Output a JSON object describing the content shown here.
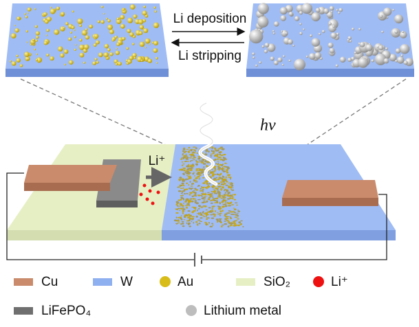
{
  "inset": {
    "deposition_label": "Li deposition",
    "stripping_label": "Li stripping"
  },
  "device": {
    "photon_label": "hv",
    "ion_label": "Li⁺"
  },
  "legend": [
    {
      "label": "Cu",
      "color": "#c98b6b",
      "shape": "rect"
    },
    {
      "label": "W",
      "color": "#8fb0f0",
      "shape": "rect"
    },
    {
      "label": "Au",
      "color": "#d8bd1a",
      "shape": "circle"
    },
    {
      "label": "SiO₂",
      "color": "#e6efc4",
      "shape": "rect"
    },
    {
      "label": "Li⁺",
      "color": "#ee1111",
      "shape": "circle"
    },
    {
      "label": "LiFePO₄",
      "color": "#6f6f6f",
      "shape": "rect"
    },
    {
      "label": "Lithium metal",
      "color": "#bdbdbd",
      "shape": "circle"
    }
  ]
}
